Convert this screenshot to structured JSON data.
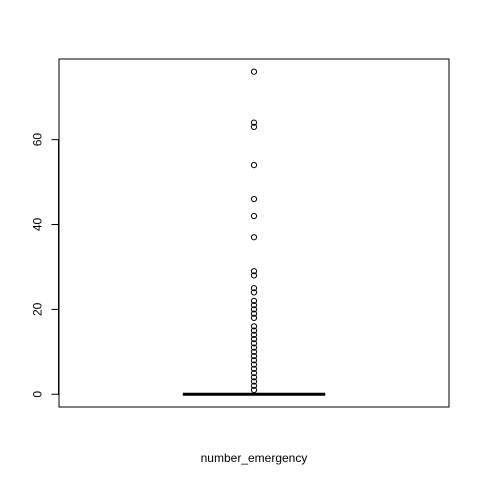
{
  "chart_data": {
    "type": "box",
    "title": "",
    "xlabel": "number_emergency",
    "ylabel": "",
    "ylim": [
      -3,
      79
    ],
    "yticks": [
      0,
      20,
      40,
      60
    ],
    "grid": false,
    "series": [
      {
        "min": 0,
        "q1": 0,
        "median": 0,
        "q3": 0,
        "max": 0,
        "outliers": [
          1,
          2,
          3,
          4,
          5,
          6,
          7,
          8,
          9,
          10,
          11,
          12,
          13,
          14,
          15,
          16,
          18,
          19,
          20,
          21,
          22,
          24,
          25,
          28,
          29,
          37,
          42,
          46,
          54,
          63,
          64,
          76
        ]
      }
    ]
  }
}
